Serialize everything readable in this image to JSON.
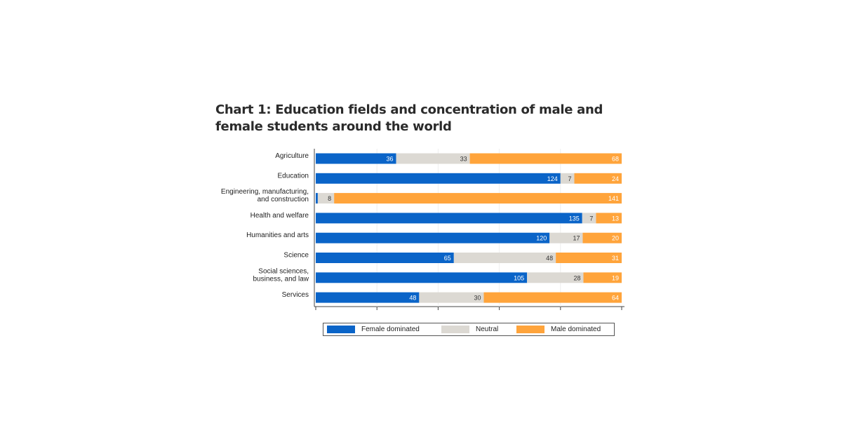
{
  "title": "Chart 1: Education fields and concentration of male and female students around the world",
  "chart_data": {
    "type": "bar",
    "orientation": "horizontal",
    "stacked": "100%",
    "categories": [
      "Agriculture",
      "Education",
      "Engineering, manufacturing, and construction",
      "Health and welfare",
      "Humanities and arts",
      "Science",
      "Social sciences, business, and law",
      "Services"
    ],
    "category_lines": [
      [
        "Agriculture"
      ],
      [
        "Education"
      ],
      [
        "Engineering, manufacturing,",
        "and construction"
      ],
      [
        "Health and welfare"
      ],
      [
        "Humanities and arts"
      ],
      [
        "Science"
      ],
      [
        "Social sciences,",
        "business, and law"
      ],
      [
        "Services"
      ]
    ],
    "series": [
      {
        "name": "Female dominated",
        "color": "#0a64c8",
        "values": [
          36,
          124,
          1,
          135,
          120,
          65,
          105,
          48
        ],
        "labeled": [
          true,
          true,
          false,
          true,
          true,
          true,
          true,
          true
        ]
      },
      {
        "name": "Neutral",
        "color": "#dcd9d3",
        "values": [
          33,
          7,
          8,
          7,
          17,
          48,
          28,
          30
        ],
        "labeled": [
          true,
          true,
          true,
          true,
          true,
          true,
          true,
          true
        ]
      },
      {
        "name": "Male dominated",
        "color": "#ffa43b",
        "values": [
          68,
          24,
          141,
          13,
          20,
          31,
          19,
          64
        ],
        "labeled": [
          true,
          true,
          true,
          true,
          true,
          true,
          true,
          true
        ]
      }
    ],
    "xlim": [
      0,
      100
    ],
    "x_tick_labels": false,
    "grid": true,
    "legend": "bottom"
  }
}
